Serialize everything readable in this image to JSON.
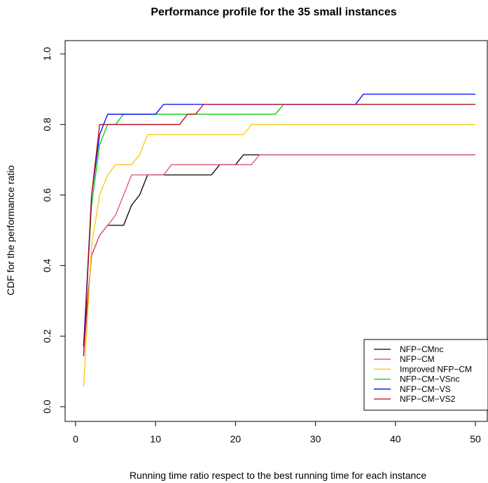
{
  "chart_data": {
    "type": "line",
    "title": "Performance profile for the 35 small instances",
    "xlabel": "Running time ratio respect to the best running time for each instance",
    "ylabel": "CDF for the performance ratio",
    "xlim": [
      0,
      50
    ],
    "ylim": [
      0.0,
      1.0
    ],
    "xticks": [
      0,
      10,
      20,
      30,
      40,
      50
    ],
    "yticks": [
      0.0,
      0.2,
      0.4,
      0.6,
      0.8,
      1.0
    ],
    "xtick_labels": [
      "0",
      "10",
      "20",
      "30",
      "40",
      "50"
    ],
    "ytick_labels": [
      "0.0",
      "0.2",
      "0.4",
      "0.6",
      "0.8",
      "1.0"
    ],
    "grid": false,
    "legend_position": "bottom-right",
    "series": [
      {
        "name": "NFP−CMnc",
        "color": "#000000",
        "x": [
          1,
          2,
          3,
          4,
          5,
          6,
          7,
          8,
          9,
          10,
          15,
          16,
          17,
          18,
          19,
          20,
          21,
          22,
          50
        ],
        "y": [
          0.171,
          0.429,
          0.486,
          0.514,
          0.514,
          0.514,
          0.571,
          0.6,
          0.657,
          0.657,
          0.657,
          0.657,
          0.657,
          0.686,
          0.686,
          0.686,
          0.714,
          0.714,
          0.714
        ]
      },
      {
        "name": "NFP−CM",
        "color": "#DF536B",
        "x": [
          1,
          2,
          3,
          4,
          5,
          6,
          7,
          8,
          9,
          10,
          11,
          12,
          20,
          21,
          22,
          23,
          50
        ],
        "y": [
          0.143,
          0.429,
          0.486,
          0.514,
          0.543,
          0.6,
          0.657,
          0.657,
          0.657,
          0.657,
          0.657,
          0.686,
          0.686,
          0.686,
          0.686,
          0.714,
          0.714
        ]
      },
      {
        "name": "Improved NFP−CM",
        "color": "#F5C710",
        "x": [
          1,
          2,
          3,
          4,
          5,
          6,
          7,
          8,
          9,
          10,
          20,
          21,
          22,
          50
        ],
        "y": [
          0.057,
          0.457,
          0.6,
          0.657,
          0.686,
          0.686,
          0.686,
          0.714,
          0.771,
          0.771,
          0.771,
          0.771,
          0.8,
          0.8
        ]
      },
      {
        "name": "NFP−CM−VSnc",
        "color": "#00CD00",
        "x": [
          1,
          2,
          3,
          4,
          5,
          6,
          7,
          25,
          26,
          50
        ],
        "y": [
          0.171,
          0.571,
          0.743,
          0.8,
          0.8,
          0.829,
          0.829,
          0.829,
          0.857,
          0.857
        ]
      },
      {
        "name": "NFP−CM−VS",
        "color": "#0000FF",
        "x": [
          1,
          2,
          3,
          4,
          10,
          11,
          15,
          35,
          36,
          50
        ],
        "y": [
          0.171,
          0.6,
          0.771,
          0.829,
          0.829,
          0.857,
          0.857,
          0.857,
          0.886,
          0.886
        ]
      },
      {
        "name": "NFP−CM−VS2",
        "color": "#C1001C",
        "x": [
          1,
          2,
          3,
          13,
          14,
          15,
          16,
          50
        ],
        "y": [
          0.143,
          0.6,
          0.8,
          0.8,
          0.829,
          0.829,
          0.857,
          0.857
        ]
      }
    ]
  }
}
